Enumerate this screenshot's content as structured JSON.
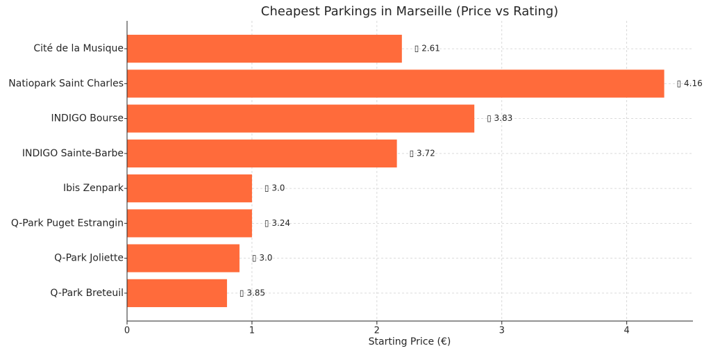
{
  "chart_data": {
    "type": "barh",
    "title": "Cheapest Parkings in Marseille (Price vs Rating)",
    "x_label": "Starting Price (€)",
    "categories": [
      "Cité de la Musique",
      "Natiopark Saint Charles",
      "INDIGO Bourse",
      "INDIGO Sainte-Barbe",
      "Ibis Zenpark",
      "Q-Park Puget Estrangin",
      "Q-Park Joliette",
      "Q-Park Breteuil"
    ],
    "values": [
      2.2,
      4.3,
      2.78,
      2.16,
      1.0,
      1.0,
      0.9,
      0.8
    ],
    "annotations": [
      "▯ 2.61",
      "▯ 4.16",
      "▯ 3.83",
      "▯ 3.72",
      "▯ 3.0",
      "▯ 3.24",
      "▯ 3.0",
      "▯ 3.85"
    ],
    "color": "#ff6b3b",
    "xlim": [
      0,
      4.53
    ],
    "xticks": [
      0,
      1,
      2,
      3,
      4
    ],
    "grid": true
  }
}
